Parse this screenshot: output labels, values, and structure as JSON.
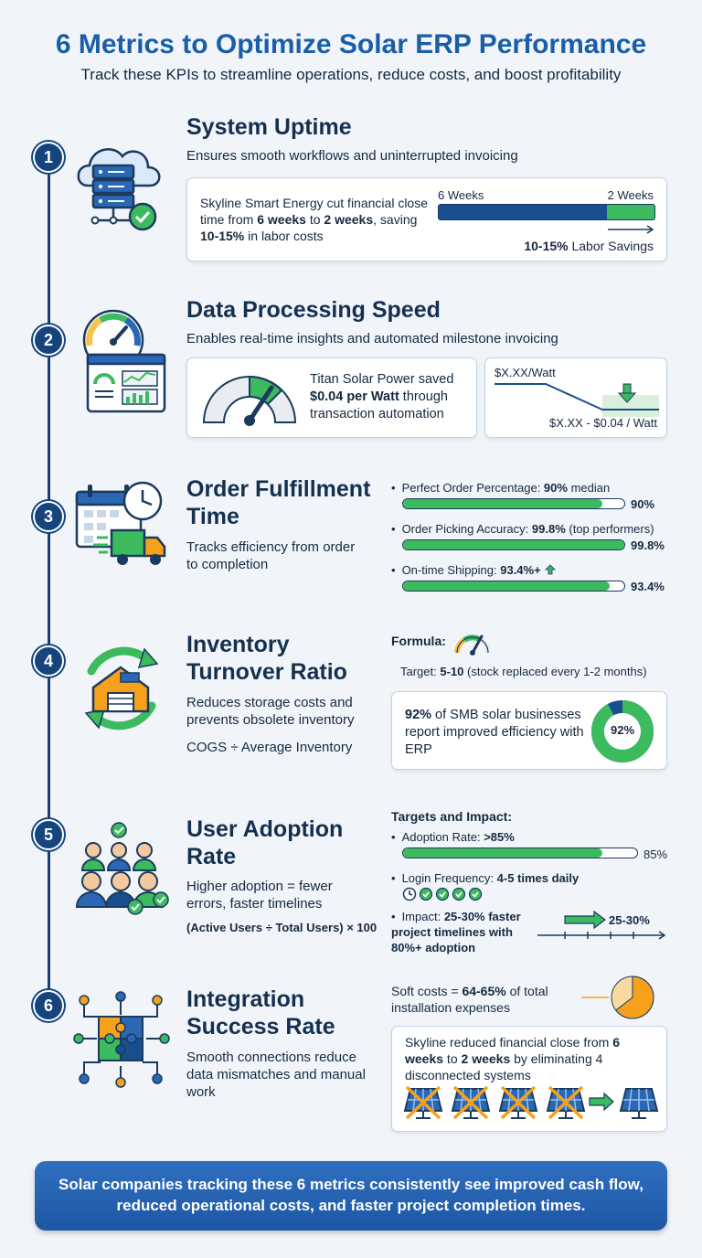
{
  "header": {
    "title": "6 Metrics to Optimize Solar ERP Performance",
    "subtitle": "Track these KPIs to streamline operations, reduce costs, and boost profitability"
  },
  "metrics": [
    {
      "number": "1",
      "icon": "cloud-server-icon",
      "title": "System Uptime",
      "description": "Ensures smooth workflows and uninterrupted invoicing",
      "card_text_1": "Skyline Smart Energy cut financial close time from ",
      "card_bold_1": "6 weeks",
      "card_text_2": " to ",
      "card_bold_2": "2 weeks",
      "card_text_3": ", saving ",
      "card_bold_3": "10-15%",
      "card_text_4": " in labor costs",
      "bar_start_label": "6 Weeks",
      "bar_end_label": "2 Weeks",
      "bar_value_fraction": 0.78,
      "savings_bold": "10-15%",
      "savings_text": " Labor Savings"
    },
    {
      "number": "2",
      "icon": "speedometer-dashboard-icon",
      "title": "Data Processing Speed",
      "description": "Enables real-time insights and automated milestone invoicing",
      "card_text_1": "Titan Solar Power saved ",
      "card_bold": "$0.04 per Watt",
      "card_text_2": " through transaction automation",
      "price_top": "$X.XX/Watt",
      "price_bottom": "$X.XX - $0.04 / Watt"
    },
    {
      "number": "3",
      "icon": "calendar-truck-icon",
      "title_line1": "Order Fulfillment",
      "title_line2": "Time",
      "description": "Tracks efficiency from order to completion",
      "stats": [
        {
          "label": "Perfect Order Percentage: ",
          "bold": "90%",
          "suffix": " median",
          "value": "90%",
          "fraction": 0.9
        },
        {
          "label": "Order Picking Accuracy: ",
          "bold": "99.8%",
          "suffix": " (top performers)",
          "value": "99.8%",
          "fraction": 0.998
        },
        {
          "label": "On-time Shipping: ",
          "bold": "93.4%+",
          "suffix": "",
          "value": "93.4%",
          "fraction": 0.934
        }
      ]
    },
    {
      "number": "4",
      "icon": "warehouse-cycle-icon",
      "title_line1": "Inventory",
      "title_line2": "Turnover Ratio",
      "description": "Reduces storage costs and prevents obsolete inventory",
      "formula": "COGS ÷ Average Inventory",
      "formula_label": "Formula:",
      "target_prefix": "Target: ",
      "target_bold": "5-10",
      "target_suffix": " (stock replaced every 1-2 months)",
      "card_bold": "92%",
      "card_text": " of SMB solar businesses report improved efficiency with ERP",
      "donut_label": "92%",
      "donut_fraction": 0.92
    },
    {
      "number": "5",
      "icon": "user-group-icon",
      "title_line1": "User Adoption",
      "title_line2": "Rate",
      "description": "Higher adoption = fewer errors, faster timelines",
      "formula": "(Active Users ÷ Total Users) × 100",
      "targets_heading": "Targets and Impact:",
      "adoption_label": "Adoption Rate: ",
      "adoption_bold": ">85%",
      "adoption_value": "85%",
      "adoption_fraction": 0.85,
      "login_label": "Login Frequency: ",
      "login_bold": "4-5 times daily",
      "impact_label": "Impact: ",
      "impact_bold": "25-30% faster project timelines with 80%+ adoption",
      "impact_value": "25-30%"
    },
    {
      "number": "6",
      "icon": "puzzle-network-icon",
      "title_line1": "Integration",
      "title_line2": "Success Rate",
      "description": "Smooth connections reduce data mismatches and manual work",
      "soft_text_1": "Soft costs = ",
      "soft_bold": "64-65%",
      "soft_text_2": " of total installation expenses",
      "soft_fraction": 0.645,
      "card_text_1": "Skyline reduced financial close from ",
      "card_bold_1": "6 weeks",
      "card_text_2": " to ",
      "card_bold_2": "2 weeks",
      "card_text_3": " by eliminating 4 disconnected systems"
    }
  ],
  "footer": {
    "text": "Solar companies tracking these 6 metrics consistently see improved cash flow, reduced operational costs, and faster project completion times."
  },
  "colors": {
    "primary_blue": "#1a5ea8",
    "navy": "#15304f",
    "green": "#3cba5e",
    "orange": "#f5a11c"
  }
}
